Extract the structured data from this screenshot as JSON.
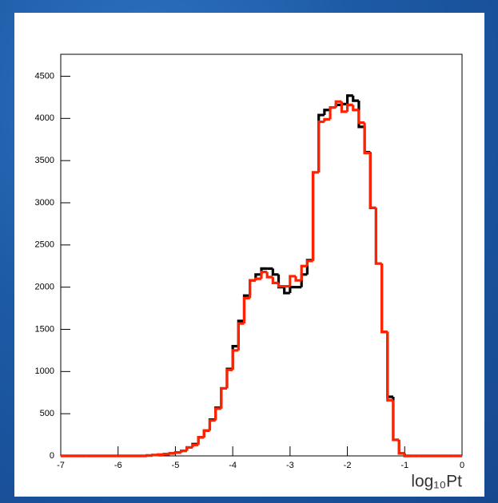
{
  "chart_data": {
    "type": "histogram",
    "x_label": "log₁₀Pt",
    "bins": [
      -7,
      -6.9,
      -6.8,
      -6.7,
      -6.6,
      -6.5,
      -6.4,
      -6.3,
      -6.2,
      -6.1,
      -6,
      -5.9,
      -5.8,
      -5.7,
      -5.6,
      -5.5,
      -5.4,
      -5.3,
      -5.2,
      -5.1,
      -5,
      -4.9,
      -4.8,
      -4.7,
      -4.6,
      -4.5,
      -4.4,
      -4.3,
      -4.2,
      -4.1,
      -4,
      -3.9,
      -3.8,
      -3.7,
      -3.6,
      -3.5,
      -3.4,
      -3.3,
      -3.2,
      -3.1,
      -3,
      -2.9,
      -2.8,
      -2.7,
      -2.6,
      -2.5,
      -2.4,
      -2.3,
      -2.2,
      -2.1,
      -2,
      -1.9,
      -1.8,
      -1.7,
      -1.6,
      -1.5,
      -1.4,
      -1.3,
      -1.2,
      -1.1,
      -1,
      -0.9,
      -0.8,
      -0.7,
      -0.6,
      -0.5,
      -0.4,
      -0.3,
      -0.2,
      -0.1,
      0
    ],
    "series": [
      {
        "color": "#000000",
        "values": [
          0,
          0,
          0,
          0,
          0,
          0,
          0,
          0,
          0,
          0,
          0,
          0,
          0,
          0,
          0,
          5,
          10,
          15,
          20,
          30,
          40,
          60,
          100,
          140,
          220,
          300,
          430,
          570,
          800,
          1030,
          1300,
          1600,
          1900,
          2080,
          2150,
          2220,
          2220,
          2150,
          2000,
          1930,
          2000,
          2000,
          2150,
          2320,
          3360,
          4040,
          4100,
          4130,
          4160,
          4170,
          4270,
          4210,
          3900,
          3600,
          2940,
          2280,
          1470,
          700,
          190,
          30,
          0,
          0,
          0,
          0,
          0,
          0,
          0,
          0,
          0,
          0
        ]
      },
      {
        "color": "#ff2200",
        "values": [
          0,
          0,
          0,
          0,
          0,
          0,
          0,
          0,
          0,
          0,
          0,
          0,
          0,
          0,
          0,
          5,
          10,
          15,
          20,
          30,
          40,
          60,
          100,
          130,
          220,
          300,
          420,
          560,
          800,
          1020,
          1250,
          1570,
          1870,
          2080,
          2100,
          2180,
          2120,
          2050,
          2010,
          2010,
          2130,
          2080,
          2250,
          2310,
          3360,
          3960,
          3990,
          4130,
          4200,
          4080,
          4160,
          4100,
          3950,
          3590,
          2940,
          2280,
          1470,
          660,
          190,
          30,
          0,
          0,
          0,
          0,
          0,
          0,
          0,
          0,
          0,
          0
        ]
      }
    ],
    "xlim": [
      -7,
      0
    ],
    "xticks": [
      -7,
      -6,
      -5,
      -4,
      -3,
      -2,
      -1,
      0
    ],
    "ylim": [
      0,
      4760
    ],
    "yticks": [
      0,
      500,
      1000,
      1500,
      2000,
      2500,
      3000,
      3500,
      4000,
      4500
    ]
  }
}
